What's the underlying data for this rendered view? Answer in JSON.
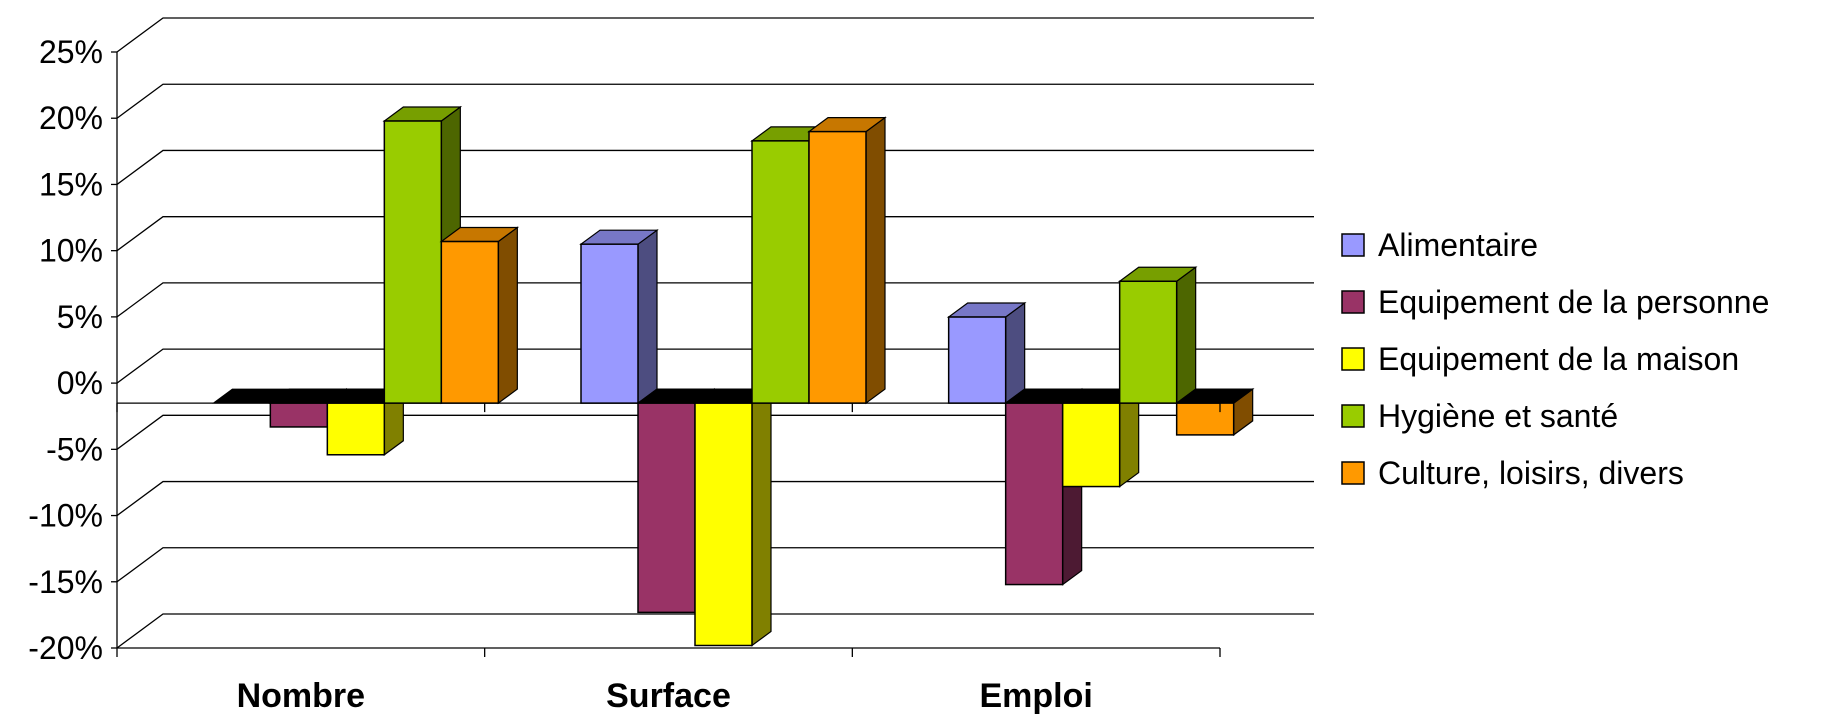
{
  "chart_data": {
    "type": "bar",
    "style": "3d-clustered-column",
    "categories": [
      "Nombre",
      "Surface",
      "Emploi"
    ],
    "series": [
      {
        "name": "Alimentaire",
        "values": [
          0,
          12,
          6.5
        ],
        "color": "#9999ff"
      },
      {
        "name": "Equipement de la personne",
        "values": [
          -1.8,
          -15.8,
          -13.7
        ],
        "color": "#993366"
      },
      {
        "name": "Equipement de la maison",
        "values": [
          -3.9,
          -18.3,
          -6.3
        ],
        "color": "#ffff00"
      },
      {
        "name": "Hygiène et santé",
        "values": [
          21.3,
          19.8,
          9.2
        ],
        "color": "#99cc00"
      },
      {
        "name": "Culture, loisirs, divers",
        "values": [
          12.2,
          20.5,
          -2.4
        ],
        "color": "#ff9900"
      }
    ],
    "ylim": [
      -20,
      25
    ],
    "yticks": [
      25,
      20,
      15,
      10,
      5,
      0,
      -5,
      -10,
      -15,
      -20
    ],
    "ytick_labels": [
      "25%",
      "20%",
      "15%",
      "10%",
      "5%",
      "0%",
      "-5%",
      "-10%",
      "-15%",
      "-20%"
    ],
    "grid": true,
    "legend_position": "right"
  }
}
